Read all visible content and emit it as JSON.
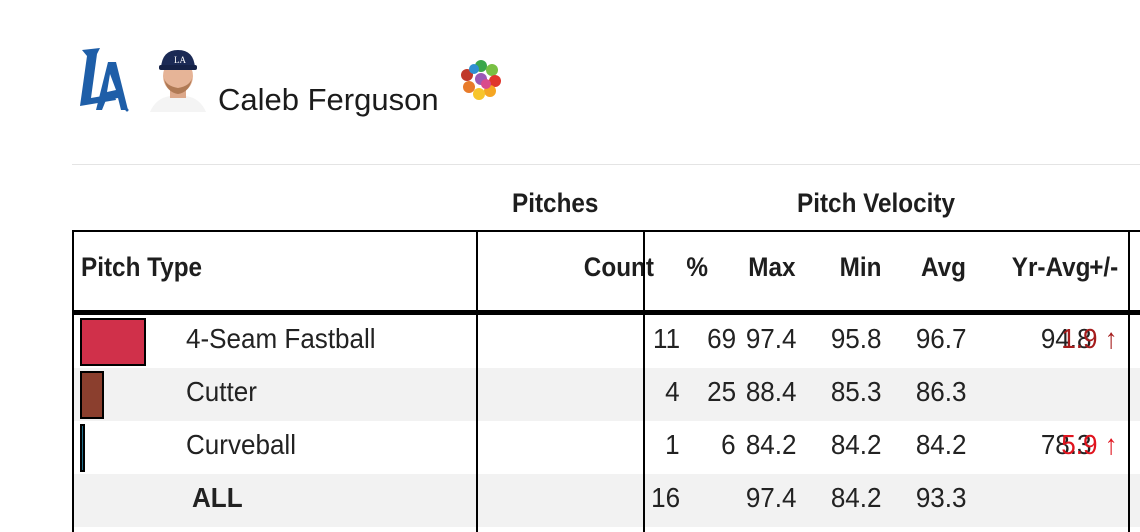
{
  "player": {
    "name": "Caleb Ferguson",
    "team_logo_icon": "la-dodgers-logo",
    "headshot_icon": "player-headshot",
    "pitcher_icon": "pitch-mix-icon"
  },
  "table": {
    "group_headers": {
      "pitches": "Pitches",
      "velocity": "Pitch Velocity"
    },
    "columns": {
      "pitch_type": "Pitch Type",
      "count": "Count",
      "pct": "%",
      "max": "Max",
      "min": "Min",
      "avg": "Avg",
      "yr_avg": "Yr-Avg",
      "diff": "+/-"
    },
    "rows": [
      {
        "name": "4-Seam Fastball",
        "color": "#d0304a",
        "count": "11",
        "pct": "69",
        "max": "97.4",
        "min": "95.8",
        "avg": "96.7",
        "yr_avg": "94.8",
        "diff": "1.9 ↑",
        "diff_color": "#a51c1c"
      },
      {
        "name": "Cutter",
        "color": "#8b3f2e",
        "count": "4",
        "pct": "25",
        "max": "88.4",
        "min": "85.3",
        "avg": "86.3",
        "yr_avg": "",
        "diff": ""
      },
      {
        "name": "Curveball",
        "color": "#1f6e8c",
        "count": "1",
        "pct": "6",
        "max": "84.2",
        "min": "84.2",
        "avg": "84.2",
        "yr_avg": "78.3",
        "diff": "5.9 ↑",
        "diff_color": "#e0141e"
      }
    ],
    "total": {
      "name": "ALL",
      "count": "16",
      "max": "97.4",
      "min": "84.2",
      "avg": "93.3"
    }
  }
}
